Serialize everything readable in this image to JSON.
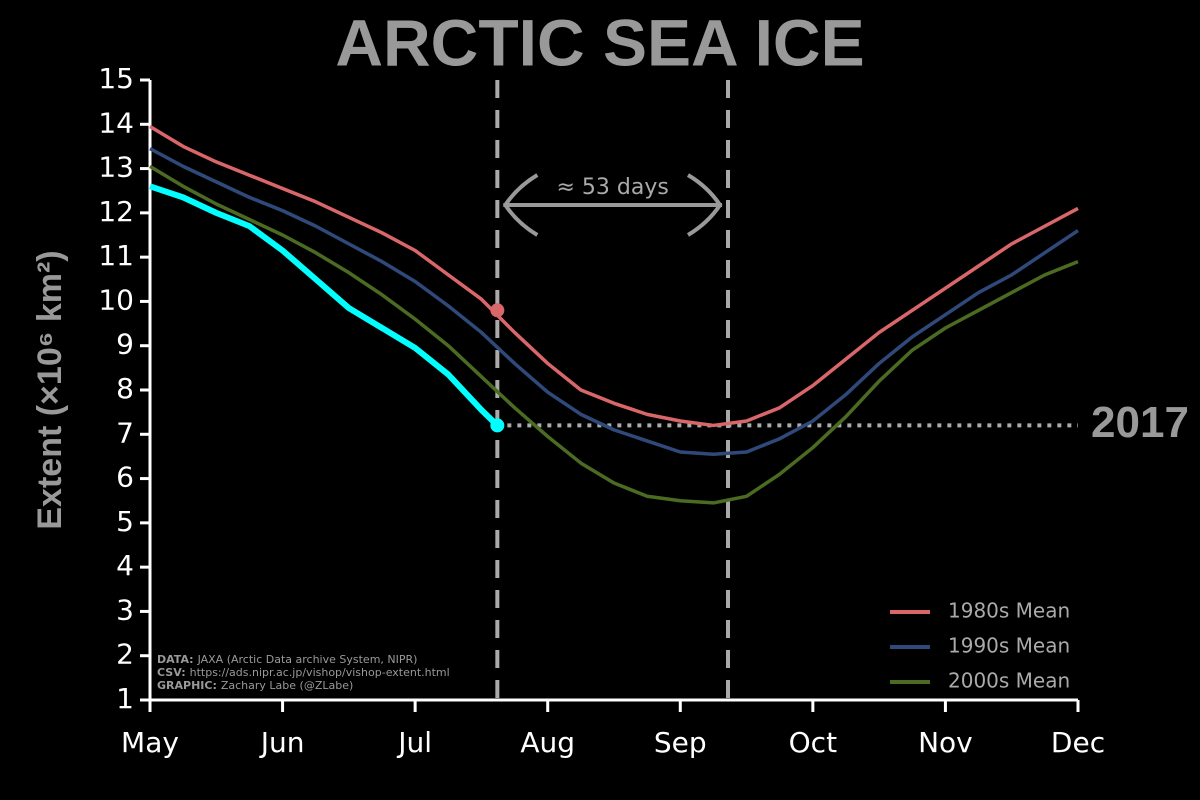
{
  "chart_data": {
    "type": "line",
    "title": "ARCTIC SEA ICE",
    "y_label": "Extent (×10⁶ km²)",
    "x": [
      0,
      0.25,
      0.5,
      0.75,
      1,
      1.25,
      1.5,
      1.75,
      2,
      2.25,
      2.5,
      2.75,
      3,
      3.25,
      3.5,
      3.75,
      4,
      4.25,
      4.5,
      4.75,
      5,
      5.25,
      5.5,
      5.75,
      6,
      6.25,
      6.5,
      6.75,
      7
    ],
    "series": [
      {
        "name": "1980s Mean",
        "color": "#d9676a",
        "values": [
          13.95,
          13.5,
          13.15,
          12.85,
          12.55,
          12.25,
          11.9,
          11.55,
          11.15,
          10.6,
          10.05,
          9.3,
          8.6,
          8.0,
          7.7,
          7.45,
          7.3,
          7.2,
          7.3,
          7.6,
          8.1,
          8.7,
          9.3,
          9.8,
          10.3,
          10.8,
          11.3,
          11.7,
          12.1
        ]
      },
      {
        "name": "1990s Mean",
        "color": "#2f4a7a",
        "values": [
          13.45,
          13.05,
          12.7,
          12.35,
          12.05,
          11.7,
          11.3,
          10.9,
          10.45,
          9.9,
          9.3,
          8.6,
          7.95,
          7.45,
          7.1,
          6.85,
          6.6,
          6.55,
          6.6,
          6.9,
          7.3,
          7.9,
          8.6,
          9.2,
          9.7,
          10.2,
          10.6,
          11.1,
          11.6
        ]
      },
      {
        "name": "2000s Mean",
        "color": "#4b6b22",
        "values": [
          13.05,
          12.6,
          12.2,
          11.85,
          11.5,
          11.1,
          10.65,
          10.15,
          9.6,
          9.0,
          8.3,
          7.6,
          6.95,
          6.35,
          5.9,
          5.6,
          5.5,
          5.45,
          5.6,
          6.1,
          6.7,
          7.4,
          8.2,
          8.9,
          9.4,
          9.8,
          10.2,
          10.6,
          10.9
        ]
      },
      {
        "name": "2017",
        "color": "#00ffff",
        "x": [
          0,
          0.25,
          0.5,
          0.75,
          1,
          1.25,
          1.5,
          1.75,
          2,
          2.25,
          2.5,
          2.62
        ],
        "values": [
          12.6,
          12.35,
          12.0,
          11.7,
          11.15,
          10.5,
          9.85,
          9.4,
          8.95,
          8.35,
          7.55,
          7.2
        ]
      }
    ],
    "highlight": {
      "x": 2.62,
      "y": 9.8
    },
    "vlines": [
      2.62,
      4.36
    ],
    "annotation": "≈ 53 days",
    "reference_y": 7.2,
    "reference_label": "2017",
    "xlim": [
      0,
      7
    ],
    "xticks": [
      {
        "value": 0,
        "label": "May"
      },
      {
        "value": 1,
        "label": "Jun"
      },
      {
        "value": 2,
        "label": "Jul"
      },
      {
        "value": 3,
        "label": "Aug"
      },
      {
        "value": 4,
        "label": "Sep"
      },
      {
        "value": 5,
        "label": "Oct"
      },
      {
        "value": 6,
        "label": "Nov"
      },
      {
        "value": 7,
        "label": "Dec"
      }
    ],
    "ylim": [
      1,
      15
    ],
    "yticks": [
      1,
      2,
      3,
      4,
      5,
      6,
      7,
      8,
      9,
      10,
      11,
      12,
      13,
      14,
      15
    ],
    "legend": "lower right",
    "credits": [
      {
        "label": "DATA:",
        "text": "JAXA (Arctic Data archive System, NIPR)"
      },
      {
        "label": "CSV:",
        "text": "https://ads.nipr.ac.jp/vishop/vishop-extent.html"
      },
      {
        "label": "GRAPHIC:",
        "text": "Zachary Labe (@ZLabe)"
      }
    ]
  }
}
